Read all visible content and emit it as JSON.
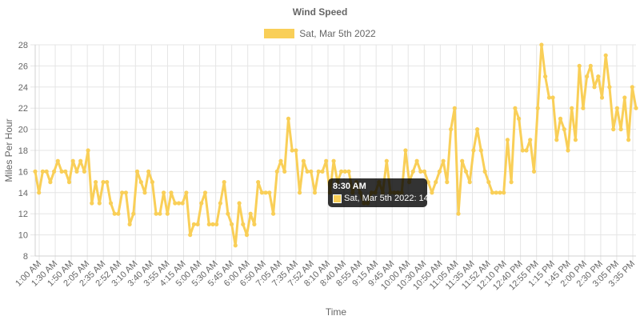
{
  "chart_data": {
    "type": "line",
    "title": "Wind Speed",
    "xlabel": "Time",
    "ylabel": "Miles Per Hour",
    "ylim": [
      8,
      28
    ],
    "yticks": [
      8,
      10,
      12,
      14,
      16,
      18,
      20,
      22,
      24,
      26,
      28
    ],
    "xtick_labels": [
      "1:00 AM",
      "1:30 AM",
      "1:50 AM",
      "2:05 AM",
      "2:35 AM",
      "2:52 AM",
      "3:10 AM",
      "3:40 AM",
      "3:55 AM",
      "4:15 AM",
      "5:00 AM",
      "5:30 AM",
      "5:45 AM",
      "6:00 AM",
      "6:50 AM",
      "7:05 AM",
      "7:35 AM",
      "7:52 AM",
      "8:10 AM",
      "8:40 AM",
      "8:55 AM",
      "9:15 AM",
      "9:45 AM",
      "10:00 AM",
      "10:30 AM",
      "10:50 AM",
      "11:05 AM",
      "11:35 AM",
      "11:52 AM",
      "12:10 PM",
      "12:40 PM",
      "12:55 PM",
      "1:15 PM",
      "1:45 PM",
      "2:00 PM",
      "2:30 PM",
      "3:05 PM",
      "3:35 PM"
    ],
    "grid": true,
    "legend_position": "top-center",
    "series": [
      {
        "name": "Sat, Mar 5th 2022",
        "color": "#f9cf58",
        "values": [
          16,
          14,
          16,
          16,
          15,
          16,
          17,
          16,
          16,
          15,
          17,
          16,
          17,
          16,
          18,
          13,
          15,
          13,
          15,
          15,
          13,
          12,
          12,
          14,
          14,
          11,
          12,
          16,
          15,
          14,
          16,
          15,
          12,
          12,
          14,
          12,
          14,
          13,
          13,
          13,
          14,
          10,
          11,
          11,
          13,
          14,
          11,
          11,
          11,
          13,
          15,
          12,
          11,
          9,
          13,
          11,
          10,
          12,
          11,
          15,
          14,
          14,
          14,
          12,
          16,
          17,
          16,
          21,
          18,
          18,
          14,
          17,
          16,
          16,
          14,
          16,
          16,
          17,
          14,
          17,
          15,
          16,
          16,
          16,
          14,
          15,
          14,
          13,
          13,
          14,
          14,
          15,
          14,
          17,
          14,
          14,
          14,
          14,
          18,
          15,
          16,
          17,
          16,
          16,
          15,
          14,
          15,
          16,
          17,
          15,
          20,
          22,
          12,
          17,
          16,
          15,
          18,
          20,
          18,
          16,
          15,
          14,
          14,
          14,
          14,
          19,
          15,
          22,
          21,
          18,
          18,
          19,
          16,
          22,
          28,
          25,
          23,
          23,
          19,
          21,
          20,
          18,
          22,
          19,
          26,
          22,
          25,
          26,
          24,
          25,
          23,
          27,
          24,
          20,
          22,
          20,
          23,
          19,
          24,
          22
        ]
      }
    ],
    "tooltip": {
      "title": "8:30 AM",
      "label": "Sat, Mar 5th 2022: 14"
    }
  }
}
